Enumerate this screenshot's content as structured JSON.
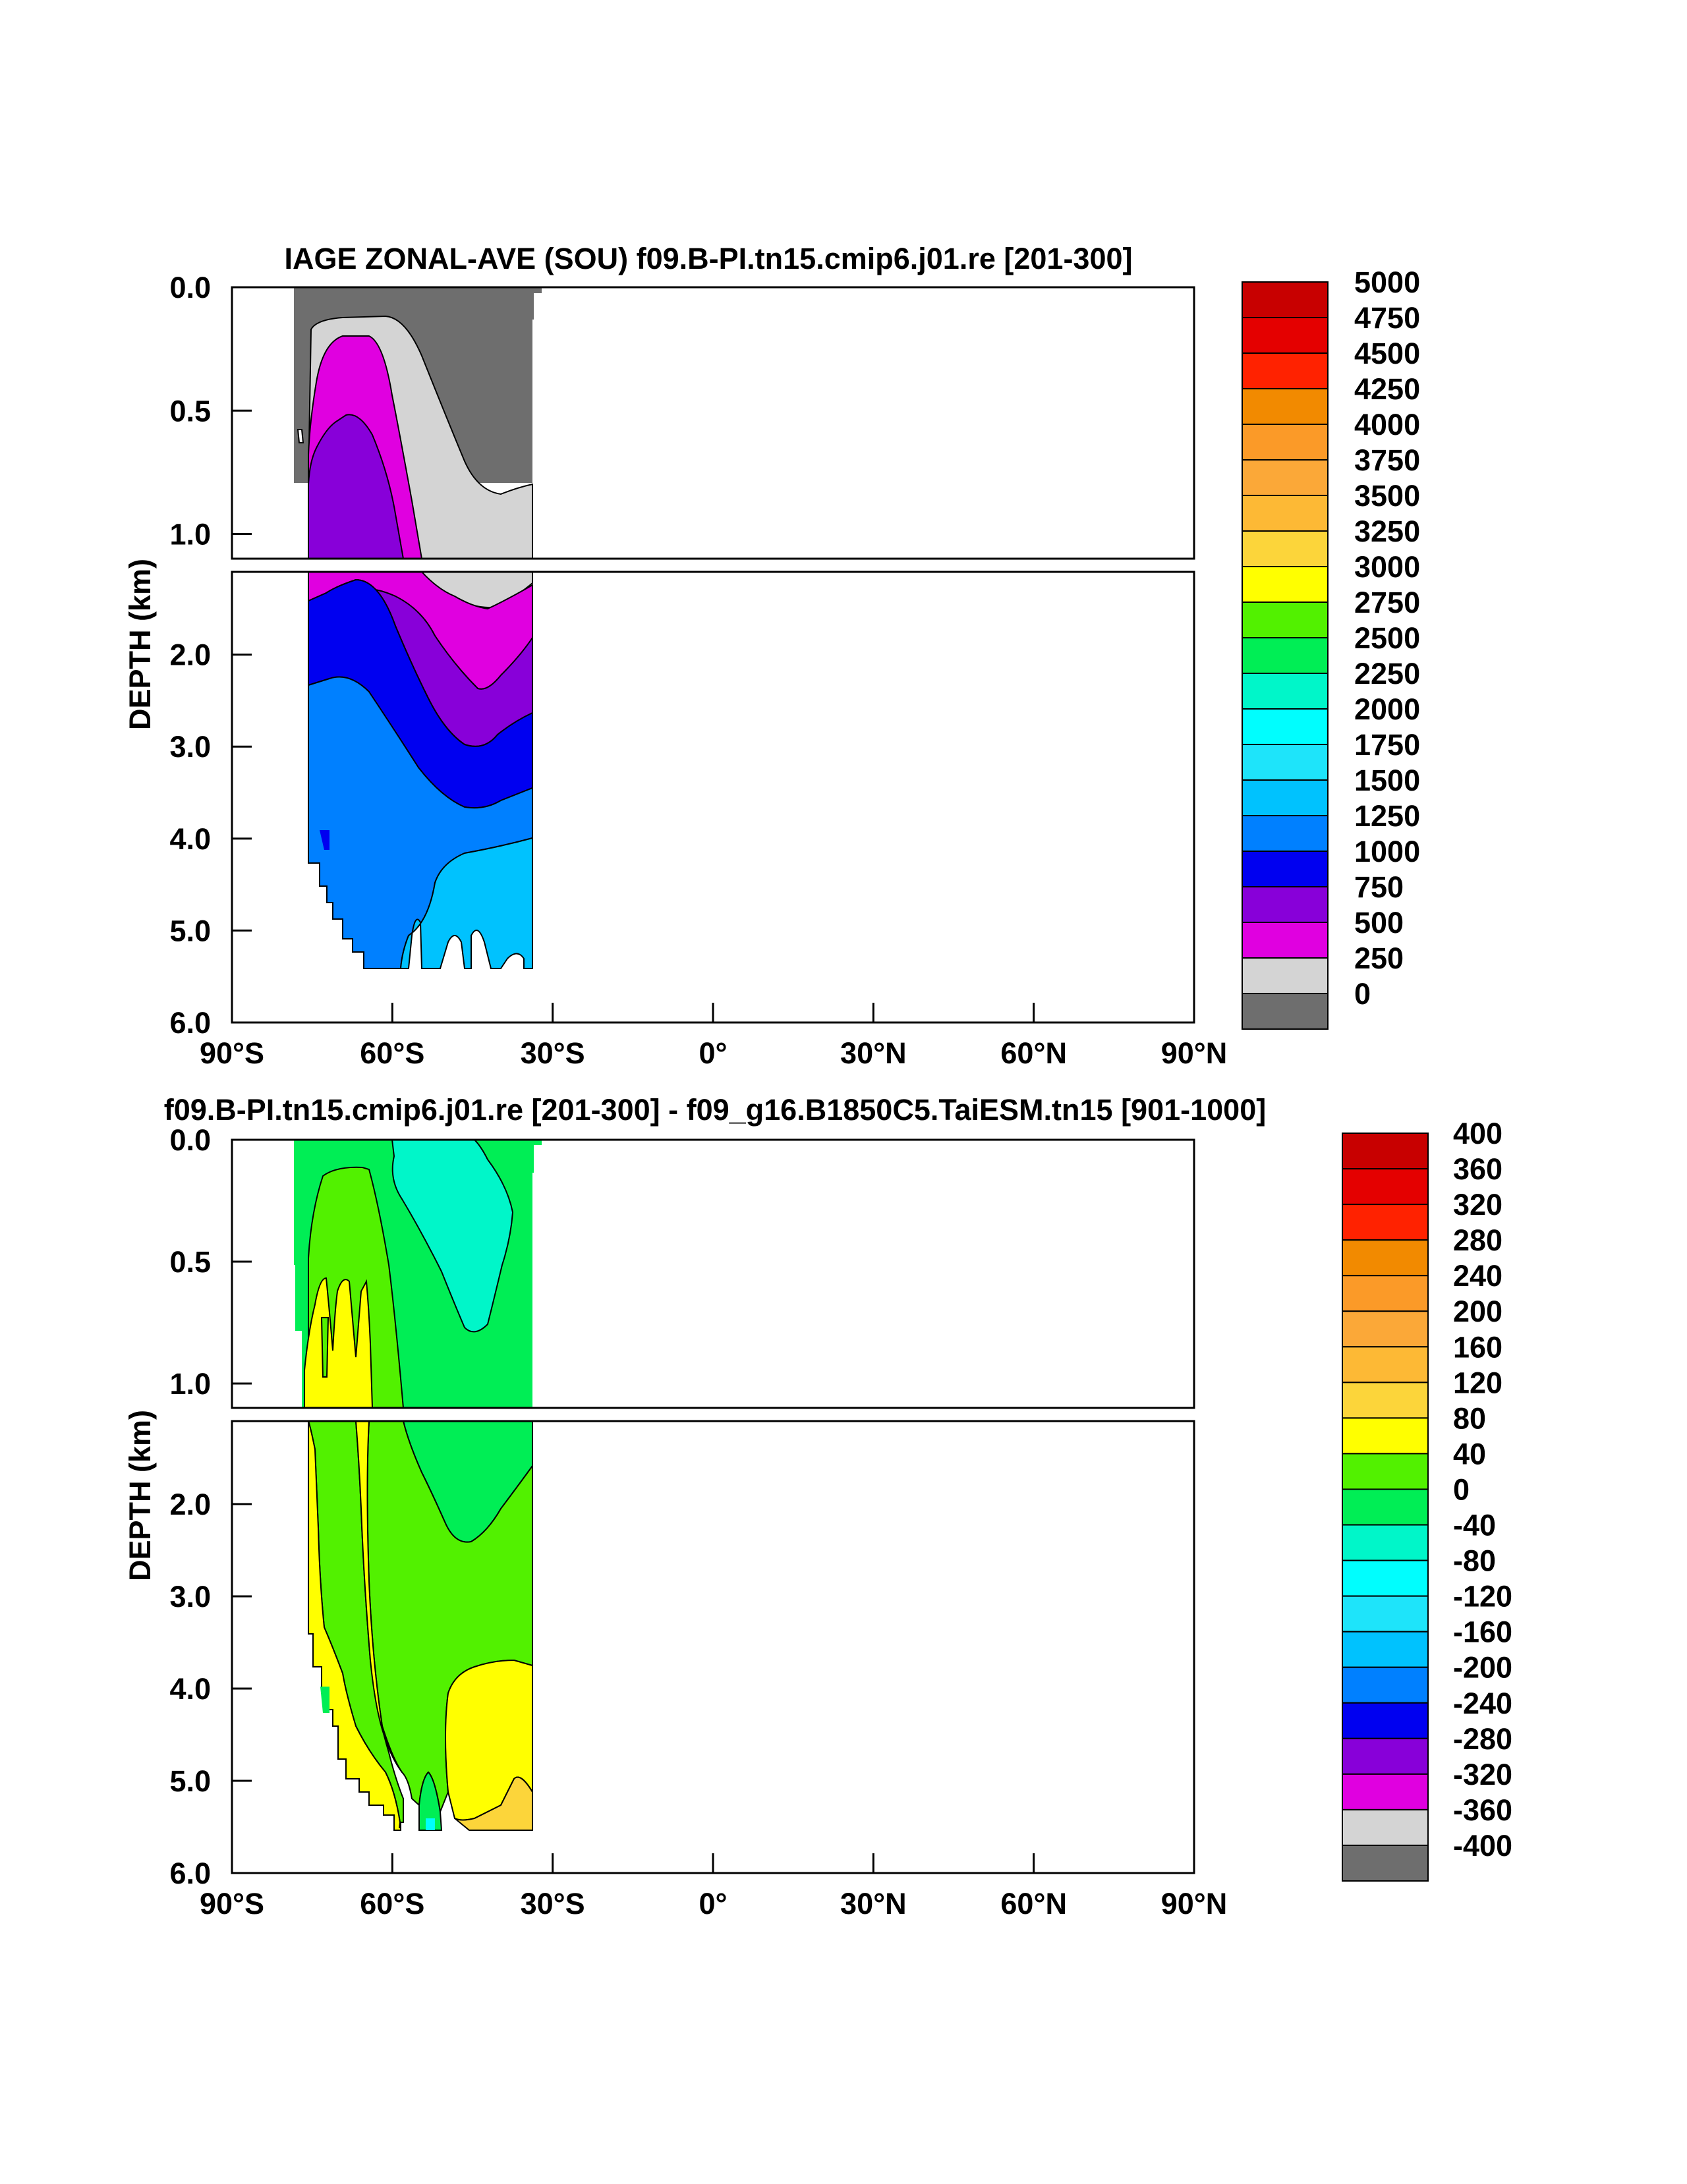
{
  "chart_data": [
    {
      "type": "contour",
      "title": "IAGE ZONAL-AVE (SOU) f09.B-PI.tn15.cmip6.j01.re [201-300]",
      "ylabel": "DEPTH (km)",
      "xlabel": "",
      "x_ticks": [
        "90°S",
        "60°S",
        "30°S",
        "0°",
        "30°N",
        "60°N",
        "90°N"
      ],
      "xlim": [
        -90,
        90
      ],
      "y_ticks_upper": [
        "0.0",
        "0.5",
        "1.0"
      ],
      "y_ticks_lower": [
        "2.0",
        "3.0",
        "4.0",
        "5.0",
        "6.0"
      ],
      "ylim_upper": [
        0,
        1.1
      ],
      "ylim_lower": [
        1.1,
        6.0
      ],
      "colorbar_labels": [
        "5000",
        "4750",
        "4500",
        "4250",
        "4000",
        "3750",
        "3500",
        "3250",
        "3000",
        "2750",
        "2500",
        "2250",
        "2000",
        "1750",
        "1500",
        "1250",
        "1000",
        "750",
        "500",
        "250",
        "0"
      ],
      "colorbar_colors": [
        "#c80000",
        "#e40000",
        "#ff2200",
        "#f28a00",
        "#fb9a28",
        "#fba838",
        "#fdb935",
        "#fcd53a",
        "#ffff00",
        "#52f100",
        "#00ee55",
        "#00f6c9",
        "#00fefe",
        "#1ee4fa",
        "#00c2fe",
        "#0080ff",
        "#0000f0",
        "#8800d9",
        "#e000e0",
        "#d4d4d4",
        "#6e6e6e"
      ],
      "data_extent_lat": [
        -78,
        -33
      ],
      "data_extent_depth_km": [
        0,
        5.4
      ]
    },
    {
      "type": "contour",
      "title": "f09.B-PI.tn15.cmip6.j01.re [201-300] - f09_g16.B1850C5.TaiESM.tn15 [901-1000]",
      "ylabel": "DEPTH (km)",
      "xlabel": "",
      "x_ticks": [
        "90°S",
        "60°S",
        "30°S",
        "0°",
        "30°N",
        "60°N",
        "90°N"
      ],
      "xlim": [
        -90,
        90
      ],
      "y_ticks_upper": [
        "0.0",
        "0.5",
        "1.0"
      ],
      "y_ticks_lower": [
        "2.0",
        "3.0",
        "4.0",
        "5.0",
        "6.0"
      ],
      "ylim_upper": [
        0,
        1.1
      ],
      "ylim_lower": [
        1.1,
        6.0
      ],
      "colorbar_labels": [
        "400",
        "360",
        "320",
        "280",
        "240",
        "200",
        "160",
        "120",
        "80",
        "40",
        "0",
        "-40",
        "-80",
        "-120",
        "-160",
        "-200",
        "-240",
        "-280",
        "-320",
        "-360",
        "-400"
      ],
      "colorbar_colors": [
        "#c80000",
        "#e40000",
        "#ff2200",
        "#f28a00",
        "#fb9a28",
        "#fba838",
        "#fdb935",
        "#fcd53a",
        "#ffff00",
        "#52f100",
        "#00ee55",
        "#00f6c9",
        "#00fefe",
        "#1ee4fa",
        "#00c2fe",
        "#0080ff",
        "#0000f0",
        "#8800d9",
        "#e000e0",
        "#d4d4d4",
        "#6e6e6e"
      ],
      "data_extent_lat": [
        -78,
        -33
      ],
      "data_extent_depth_km": [
        0,
        5.4
      ]
    }
  ]
}
